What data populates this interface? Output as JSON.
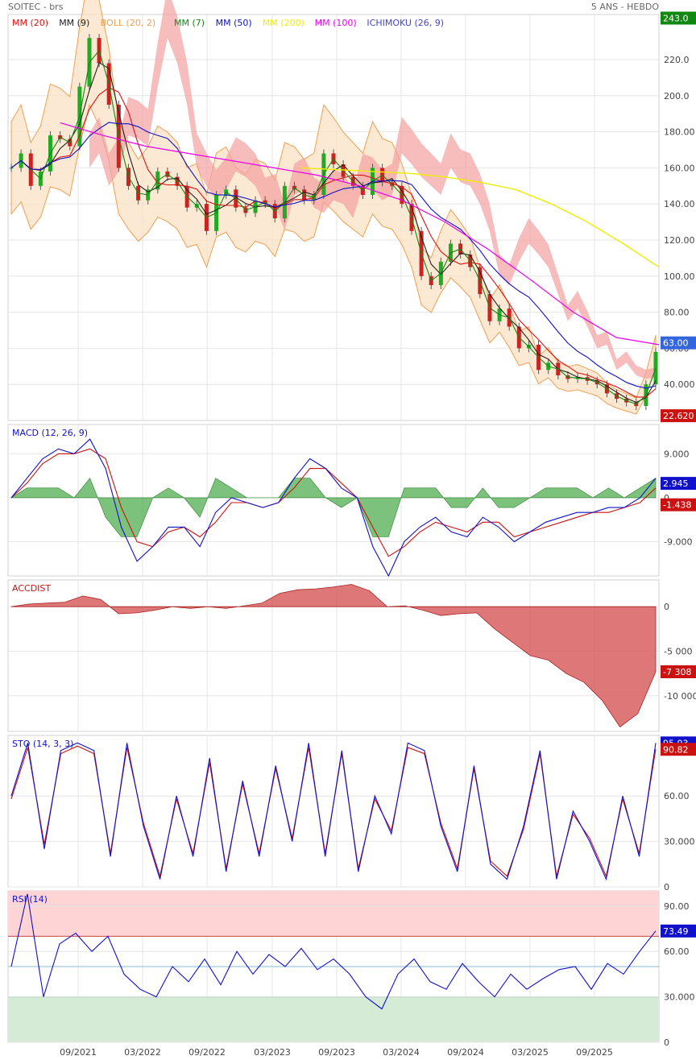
{
  "header": {
    "symbol": "SOITEC - brs",
    "period": "5 ANS - HEBDO"
  },
  "colors": {
    "mm20": "#dd1111",
    "mm9": "#222222",
    "boll": "#f0a050",
    "mm7": "#118811",
    "mm50": "#1111cc",
    "mm200": "#eeee00",
    "mm100": "#ee00ee",
    "ichimoku": "#4444cc",
    "up": "#22aa22",
    "down": "#cc2222",
    "grid": "#e6e6e6"
  },
  "chart_data": [
    {
      "panel": "price",
      "type": "line",
      "legend": [
        {
          "label": "MM (20)",
          "color": "#dd1111"
        },
        {
          "label": "MM (9)",
          "color": "#222222"
        },
        {
          "label": "BOLL (20, 2)",
          "color": "#f0a050"
        },
        {
          "label": "MM (7)",
          "color": "#118811"
        },
        {
          "label": "MM (50)",
          "color": "#1111cc"
        },
        {
          "label": "MM (200)",
          "color": "#eeee00"
        },
        {
          "label": "MM (100)",
          "color": "#ee00ee"
        },
        {
          "label": "ICHIMOKU (26, 9)",
          "color": "#4444cc"
        }
      ],
      "y_ticks": [
        40,
        60,
        80,
        100,
        120,
        140,
        160,
        180,
        200,
        220
      ],
      "y_tick_labels": [
        "40.000",
        "60.00",
        "80.00",
        "100.00",
        "120.00",
        "140.00",
        "160.00",
        "180.00",
        "200.0",
        "220.0"
      ],
      "ylim": [
        20,
        245
      ],
      "badges": [
        {
          "label": "243.0",
          "value": 243.0,
          "color": "#118811"
        },
        {
          "label": "63.00",
          "value": 63.0,
          "color": "#3366dd"
        },
        {
          "label": "22.620",
          "value": 22.62,
          "color": "#cc1111"
        }
      ],
      "series": [
        {
          "name": "close",
          "values": [
            160,
            168,
            150,
            158,
            178,
            176,
            172,
            205,
            232,
            218,
            195,
            160,
            150,
            142,
            148,
            158,
            155,
            150,
            138,
            140,
            125,
            145,
            148,
            138,
            135,
            142,
            140,
            132,
            150,
            148,
            142,
            145,
            168,
            162,
            155,
            150,
            145,
            160,
            152,
            150,
            140,
            125,
            100,
            95,
            108,
            118,
            112,
            105,
            90,
            75,
            82,
            72,
            60,
            62,
            48,
            52,
            45,
            43,
            44,
            42,
            40,
            35,
            32,
            30,
            28,
            40,
            58
          ]
        },
        {
          "name": "mm200",
          "values": [
            160,
            159,
            158,
            157,
            155,
            152,
            148,
            140,
            130,
            118,
            105
          ]
        },
        {
          "name": "mm100",
          "values": [
            185,
            178,
            172,
            168,
            164,
            160,
            156,
            150,
            142,
            130,
            115,
            98,
            80,
            66,
            62
          ]
        }
      ]
    },
    {
      "panel": "macd",
      "type": "line",
      "legend": [
        {
          "label": "MACD (12, 26, 9)",
          "color": "#1111cc"
        }
      ],
      "y_ticks": [
        9,
        0,
        -9
      ],
      "y_tick_labels": [
        "9.000",
        "0",
        "-9.000"
      ],
      "ylim": [
        -16,
        15
      ],
      "badges": [
        {
          "label": "2.945",
          "value": 2.945,
          "color": "#1111cc"
        },
        {
          "label": "-1.438",
          "value": -1.438,
          "color": "#cc1111"
        }
      ],
      "series": [
        {
          "name": "macd",
          "values": [
            0,
            4,
            8,
            10,
            9,
            12,
            6,
            -6,
            -13,
            -10,
            -6,
            -6,
            -10,
            -3,
            0,
            -1,
            -2,
            -1,
            4,
            8,
            6,
            2,
            0,
            -10,
            -16,
            -9,
            -6,
            -4,
            -7,
            -8,
            -4,
            -6,
            -9,
            -7,
            -5,
            -4,
            -3,
            -3,
            -2,
            -2,
            0,
            4
          ]
        },
        {
          "name": "signal",
          "values": [
            0,
            3,
            7,
            9,
            9,
            10,
            8,
            -2,
            -9,
            -10,
            -7,
            -6,
            -8,
            -5,
            -1,
            -1,
            -2,
            -1,
            2,
            6,
            6,
            3,
            0,
            -6,
            -12,
            -10,
            -7,
            -5,
            -6,
            -7,
            -5,
            -5,
            -8,
            -7,
            -6,
            -5,
            -4,
            -3,
            -3,
            -2,
            -1,
            2
          ]
        }
      ]
    },
    {
      "panel": "accdist",
      "type": "area",
      "legend": [
        {
          "label": "ACCDIST",
          "color": "#cc1111"
        }
      ],
      "y_ticks": [
        0,
        -5000,
        -10000
      ],
      "y_tick_labels": [
        "0",
        "-5 000",
        "-10 000"
      ],
      "ylim": [
        -14000,
        3000
      ],
      "badges": [
        {
          "label": "-7 308",
          "value": -7308,
          "color": "#cc1111"
        }
      ],
      "series": [
        {
          "name": "accdist",
          "values": [
            0,
            300,
            400,
            500,
            1200,
            800,
            -800,
            -700,
            -400,
            0,
            -200,
            0,
            -200,
            100,
            400,
            1500,
            1900,
            2000,
            2200,
            2500,
            1800,
            0,
            100,
            -400,
            -1000,
            -800,
            -700,
            -2500,
            -4000,
            -5500,
            -6000,
            -7500,
            -8500,
            -10500,
            -13500,
            -12000,
            -7308
          ]
        }
      ]
    },
    {
      "panel": "sto",
      "type": "line",
      "legend": [
        {
          "label": "STO (14, 3, 3)",
          "color": "#1111cc"
        }
      ],
      "y_ticks": [
        0,
        30,
        60
      ],
      "y_tick_labels": [
        "0",
        "30.000",
        "60.00"
      ],
      "ylim": [
        0,
        100
      ],
      "badges": [
        {
          "label": "95.03",
          "value": 95.03,
          "color": "#1111cc"
        },
        {
          "label": "90.82",
          "value": 90.82,
          "color": "#cc1111"
        }
      ],
      "series": [
        {
          "name": "%K",
          "values": [
            60,
            95,
            25,
            90,
            95,
            90,
            20,
            95,
            40,
            5,
            60,
            20,
            85,
            10,
            70,
            20,
            80,
            30,
            95,
            20,
            90,
            10,
            60,
            35,
            95,
            90,
            40,
            10,
            80,
            15,
            5,
            40,
            90,
            5,
            50,
            30,
            5,
            60,
            20,
            95
          ]
        },
        {
          "name": "%D",
          "values": [
            58,
            92,
            28,
            88,
            93,
            88,
            22,
            92,
            42,
            7,
            58,
            22,
            82,
            12,
            68,
            22,
            78,
            32,
            92,
            22,
            88,
            12,
            58,
            37,
            92,
            88,
            42,
            12,
            78,
            17,
            7,
            38,
            88,
            7,
            48,
            32,
            7,
            58,
            22,
            91
          ]
        }
      ]
    },
    {
      "panel": "rsi",
      "type": "line",
      "legend": [
        {
          "label": "RSI (14)",
          "color": "#1111cc"
        }
      ],
      "y_ticks": [
        0,
        30,
        60,
        90
      ],
      "y_tick_labels": [
        "0",
        "30.000",
        "60.00",
        "90.00"
      ],
      "ylim": [
        0,
        100
      ],
      "badges": [
        {
          "label": "73.49",
          "value": 73.49,
          "color": "#1111cc"
        }
      ],
      "series": [
        {
          "name": "rsi",
          "values": [
            50,
            98,
            30,
            65,
            72,
            60,
            70,
            45,
            35,
            30,
            50,
            40,
            55,
            38,
            60,
            45,
            58,
            50,
            62,
            48,
            55,
            45,
            30,
            22,
            45,
            55,
            40,
            35,
            52,
            40,
            30,
            45,
            35,
            42,
            48,
            50,
            35,
            52,
            45,
            60,
            73.49
          ]
        }
      ]
    }
  ],
  "x_axis": {
    "labels": [
      "09/2021",
      "03/2022",
      "09/2022",
      "03/2023",
      "09/2023",
      "03/2024",
      "09/2024",
      "03/2025",
      "09/2025"
    ]
  }
}
